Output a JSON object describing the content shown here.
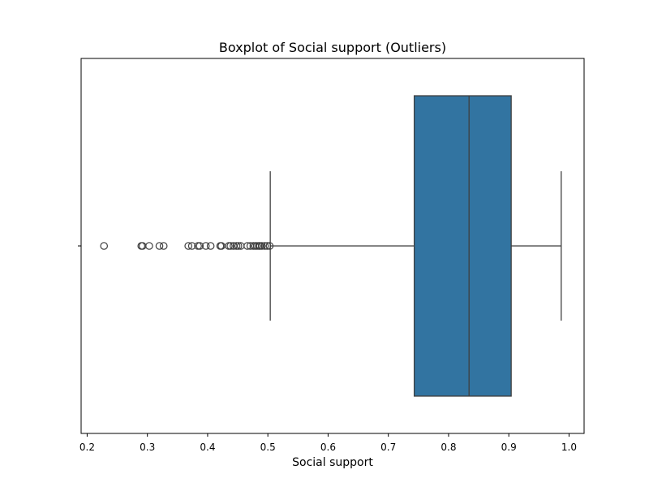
{
  "chart_data": {
    "type": "box",
    "orientation": "horizontal",
    "title": "Boxplot of Social support (Outliers)",
    "xlabel": "Social support",
    "ylabel": "",
    "xlim": [
      0.19,
      1.025
    ],
    "xticks": [
      0.2,
      0.3,
      0.4,
      0.5,
      0.6,
      0.7,
      0.8,
      0.9,
      1.0
    ],
    "xtick_labels": [
      "0.2",
      "0.3",
      "0.4",
      "0.5",
      "0.6",
      "0.7",
      "0.8",
      "0.9",
      "1.0"
    ],
    "grid": false,
    "legend": "none",
    "box": {
      "whisker_low": 0.504,
      "q1": 0.743,
      "median": 0.834,
      "q3": 0.904,
      "whisker_high": 0.987,
      "color": "#3274a1"
    },
    "outliers": [
      0.228,
      0.29,
      0.292,
      0.303,
      0.32,
      0.327,
      0.368,
      0.374,
      0.384,
      0.387,
      0.397,
      0.405,
      0.421,
      0.423,
      0.435,
      0.438,
      0.443,
      0.448,
      0.451,
      0.455,
      0.466,
      0.471,
      0.476,
      0.479,
      0.482,
      0.485,
      0.487,
      0.49,
      0.495,
      0.499,
      0.503
    ]
  }
}
